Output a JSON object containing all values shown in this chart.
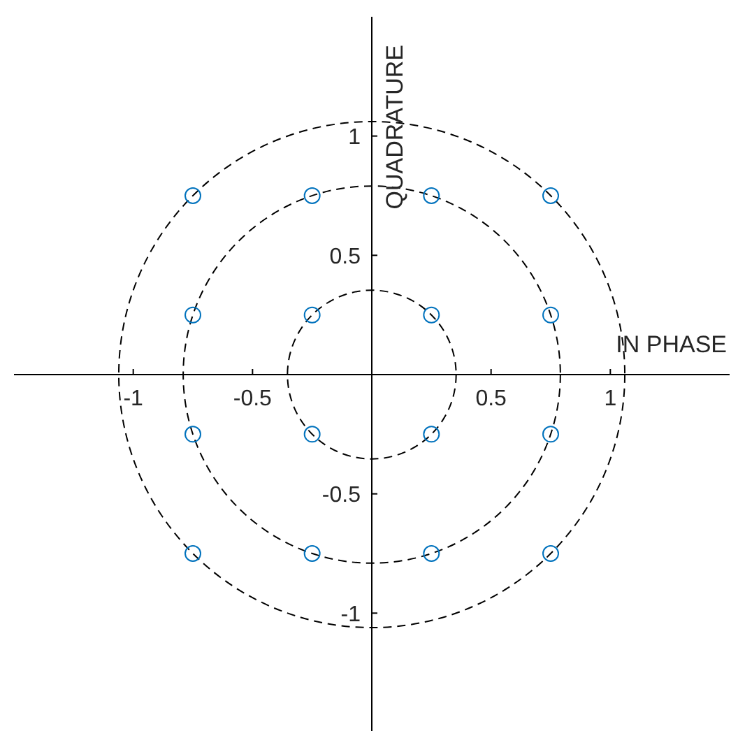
{
  "chart_data": {
    "type": "scatter",
    "xlabel": "IN PHASE",
    "ylabel": "QUADRATURE",
    "xlim": [
      -1.5,
      1.5
    ],
    "ylim": [
      -1.5,
      1.5
    ],
    "xticks": [
      -1,
      -0.5,
      0.5,
      1
    ],
    "yticks": [
      -1,
      -0.5,
      0.5,
      1
    ],
    "series": [
      {
        "type": "scatter",
        "color": "#0072bd",
        "marker": "circle",
        "x": [
          -0.75,
          -0.25,
          0.25,
          0.75,
          -0.75,
          -0.25,
          0.25,
          0.75,
          -0.75,
          -0.25,
          0.25,
          0.75,
          -0.75,
          -0.25,
          0.25,
          0.75
        ],
        "values": [
          0.75,
          0.75,
          0.75,
          0.75,
          0.25,
          0.25,
          0.25,
          0.25,
          -0.25,
          -0.25,
          -0.25,
          -0.25,
          -0.75,
          -0.75,
          -0.75,
          -0.75
        ]
      }
    ]
  }
}
